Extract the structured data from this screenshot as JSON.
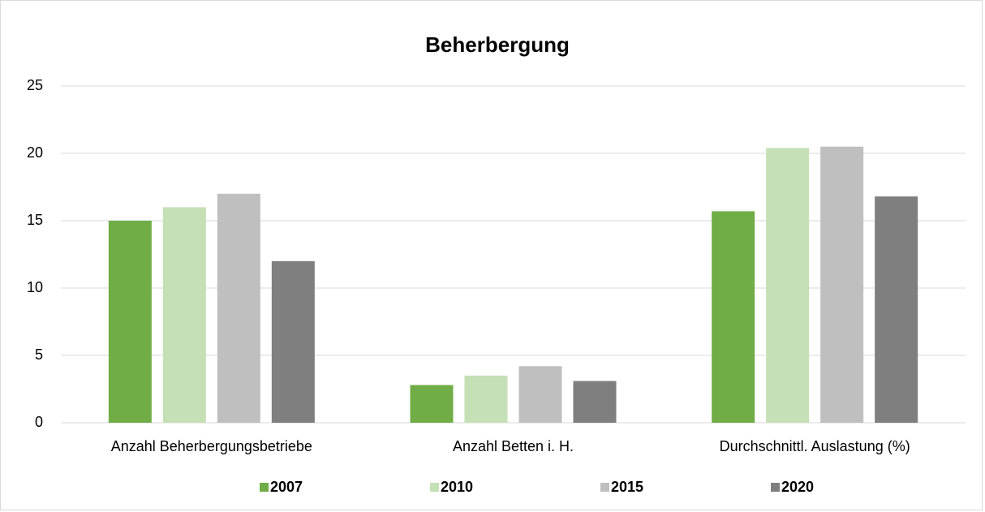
{
  "chart_data": {
    "type": "bar",
    "title": "Beherbergung",
    "categories": [
      "Anzahl Beherbergungsbetriebe",
      "Anzahl Betten i. H.",
      "Durchschnittl. Auslastung (%)"
    ],
    "series": [
      {
        "name": "2007",
        "color": "#70ad47",
        "values": [
          15,
          2.8,
          15.7
        ]
      },
      {
        "name": "2010",
        "color": "#c5e0b4",
        "values": [
          16,
          3.5,
          20.4
        ]
      },
      {
        "name": "2015",
        "color": "#bfbfbf",
        "values": [
          17,
          4.2,
          20.5
        ]
      },
      {
        "name": "2020",
        "color": "#7f7f7f",
        "values": [
          12,
          3.1,
          16.8
        ]
      }
    ],
    "ylim": [
      0,
      25
    ],
    "yticks": [
      0,
      5,
      10,
      15,
      20,
      25
    ],
    "grid": true,
    "legend": "bottom"
  }
}
